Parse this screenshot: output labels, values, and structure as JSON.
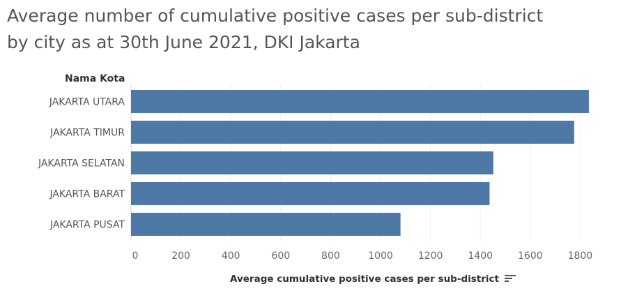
{
  "page": {
    "title_line1": "Average number of cumulative positive cases per sub-district",
    "title_line2": "by city as at 30th June 2021, DKI Jakarta"
  },
  "chart_data": {
    "type": "bar",
    "orientation": "horizontal",
    "title": "Average number of cumulative positive cases per sub-district by city as at 30th June 2021, DKI Jakarta",
    "category_label": "Nama Kota",
    "categories": [
      "JAKARTA UTARA",
      "JAKARTA TIMUR",
      "JAKARTA SELATAN",
      "JAKARTA BARAT",
      "JAKARTA PUSAT"
    ],
    "values": [
      1835,
      1776,
      1452,
      1437,
      1080
    ],
    "xlabel": "Average cumulative positive cases per sub-district",
    "xlim": [
      0,
      1900
    ],
    "xticks": [
      0,
      200,
      400,
      600,
      800,
      1000,
      1200,
      1400,
      1600,
      1800
    ],
    "grid": true,
    "bar_color": "#4e79a7",
    "sort_icon": "sort-descending-icon"
  }
}
